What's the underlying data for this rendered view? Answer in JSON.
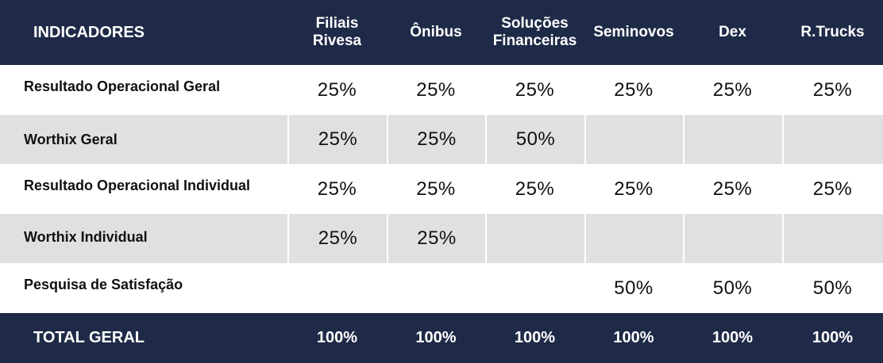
{
  "header": {
    "indicators": "INDICADORES",
    "columns": [
      "Filiais Rivesa",
      "Ônibus",
      "Soluções Financeiras",
      "Seminovos",
      "Dex",
      "R.Trucks"
    ]
  },
  "rows": [
    {
      "label": "Resultado Operacional Geral",
      "values": [
        "25%",
        "25%",
        "25%",
        "25%",
        "25%",
        "25%"
      ]
    },
    {
      "label": "Worthix Geral",
      "values": [
        "25%",
        "25%",
        "50%",
        "",
        "",
        ""
      ]
    },
    {
      "label": "Resultado Operacional Individual",
      "values": [
        "25%",
        "25%",
        "25%",
        "25%",
        "25%",
        "25%"
      ]
    },
    {
      "label": "Worthix Individual",
      "values": [
        "25%",
        "25%",
        "",
        "",
        "",
        ""
      ]
    },
    {
      "label": "Pesquisa de Satisfação",
      "values": [
        "",
        "",
        "",
        "50%",
        "50%",
        "50%"
      ]
    }
  ],
  "total": {
    "label": "TOTAL GERAL",
    "values": [
      "100%",
      "100%",
      "100%",
      "100%",
      "100%",
      "100%"
    ]
  },
  "colors": {
    "header_bg": "#1e2a47",
    "stripe_bg": "#e0e0e0",
    "text": "#111111"
  }
}
